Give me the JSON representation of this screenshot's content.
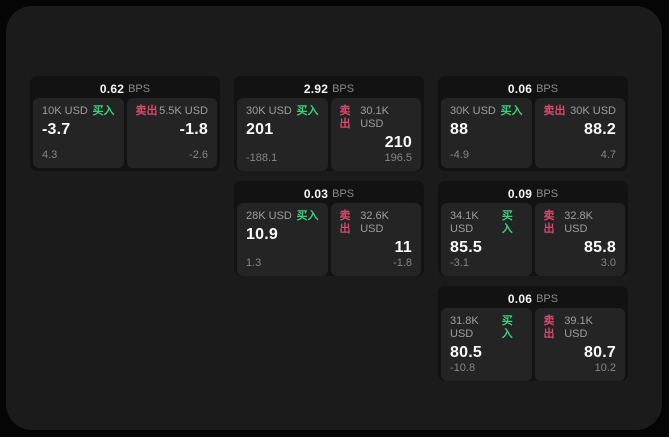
{
  "labels": {
    "bps_unit": "BPS",
    "buy": "买入",
    "sell": "卖出"
  },
  "colors": {
    "outer_bg": "#050505",
    "page_bg": "#1b1b1b",
    "card_bg": "#121212",
    "panel_bg": "#242424",
    "buy": "#3bcf7d",
    "sell": "#d6496b"
  },
  "cards": [
    {
      "bps": "0.62",
      "buy": {
        "amount": "10K USD",
        "price": "-3.7",
        "delta": "4.3"
      },
      "sell": {
        "amount": "5.5K USD",
        "price": "-1.8",
        "delta": "-2.6"
      }
    },
    {
      "bps": "2.92",
      "buy": {
        "amount": "30K USD",
        "price": "201",
        "delta": "-188.1"
      },
      "sell": {
        "amount": "30.1K USD",
        "price": "210",
        "delta": "196.5"
      }
    },
    {
      "bps": "0.06",
      "buy": {
        "amount": "30K USD",
        "price": "88",
        "delta": "-4.9"
      },
      "sell": {
        "amount": "30K USD",
        "price": "88.2",
        "delta": "4.7"
      }
    },
    {
      "bps": "0.03",
      "buy": {
        "amount": "28K USD",
        "price": "10.9",
        "delta": "1.3"
      },
      "sell": {
        "amount": "32.6K USD",
        "price": "11",
        "delta": "-1.8"
      }
    },
    {
      "bps": "0.09",
      "buy": {
        "amount": "34.1K USD",
        "price": "85.5",
        "delta": "-3.1"
      },
      "sell": {
        "amount": "32.8K USD",
        "price": "85.8",
        "delta": "3.0"
      }
    },
    {
      "bps": "0.06",
      "buy": {
        "amount": "31.8K USD",
        "price": "80.5",
        "delta": "-10.8"
      },
      "sell": {
        "amount": "39.1K USD",
        "price": "80.7",
        "delta": "10.2"
      }
    }
  ]
}
